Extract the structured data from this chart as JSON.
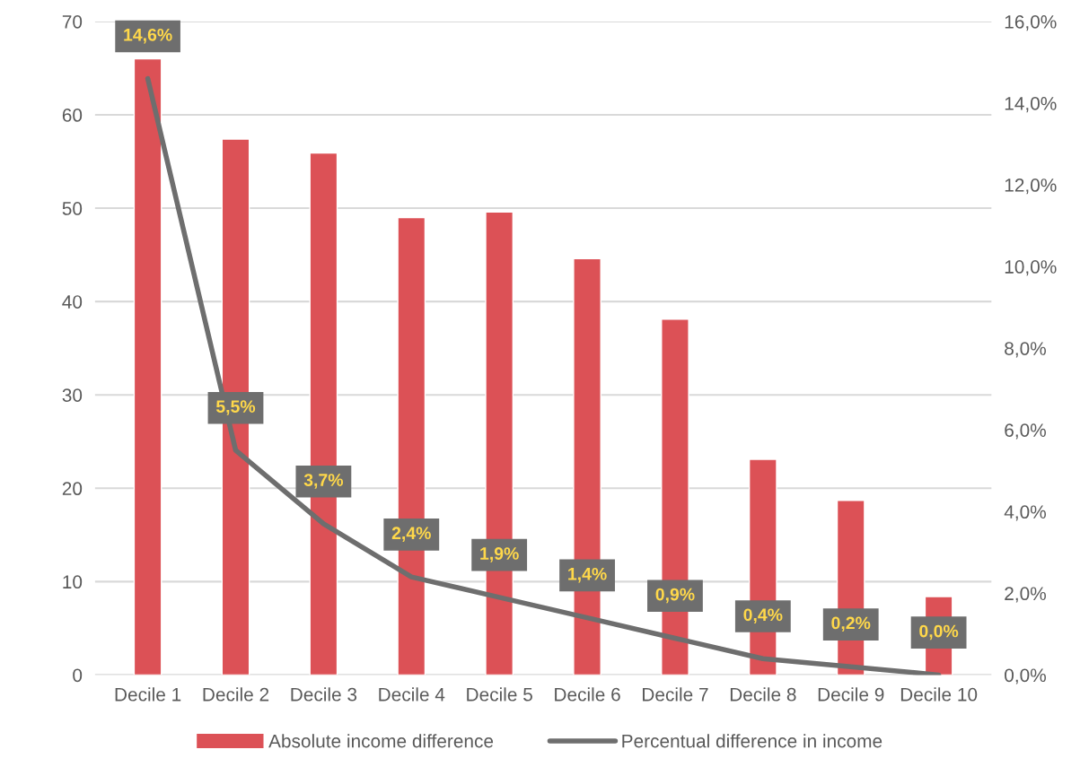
{
  "chart_data": {
    "type": "bar",
    "categories": [
      "Decile 1",
      "Decile 2",
      "Decile 3",
      "Decile 4",
      "Decile 5",
      "Decile 6",
      "Decile 7",
      "Decile 8",
      "Decile 9",
      "Decile 10"
    ],
    "series": [
      {
        "name": "Absolute income difference",
        "color": "#dc5156",
        "values": [
          66,
          57.4,
          55.9,
          49.0,
          49.6,
          44.6,
          38.1,
          23.1,
          18.7,
          8.4
        ]
      },
      {
        "name": "Percentual difference in income",
        "type": "line",
        "axis": "y2",
        "color": "#6e6e6e",
        "values": [
          14.6,
          5.5,
          3.7,
          2.4,
          1.9,
          1.4,
          0.9,
          0.4,
          0.2,
          0.0
        ],
        "value_labels": [
          "14,6%",
          "5,5%",
          "3,7%",
          "2,4%",
          "1,9%",
          "1,4%",
          "0,9%",
          "0,4%",
          "0,2%",
          "0,0%"
        ]
      }
    ],
    "ylim": [
      0,
      70
    ],
    "yticks": [
      0,
      10,
      20,
      30,
      40,
      50,
      60,
      70
    ],
    "y2lim": [
      0,
      16
    ],
    "y2ticks": [
      {
        "value": 0,
        "label": "0,0%"
      },
      {
        "value": 2,
        "label": "2,0%"
      },
      {
        "value": 4,
        "label": "4,0%"
      },
      {
        "value": 6,
        "label": "6,0%"
      },
      {
        "value": 8,
        "label": "8,0%"
      },
      {
        "value": 10,
        "label": "10,0%"
      },
      {
        "value": 12,
        "label": "12,0%"
      },
      {
        "value": 14,
        "label": "14,0%"
      },
      {
        "value": 16,
        "label": "16,0%"
      }
    ],
    "grid": "y",
    "legend": "bottom",
    "marker": "none",
    "line_style": "solid"
  }
}
